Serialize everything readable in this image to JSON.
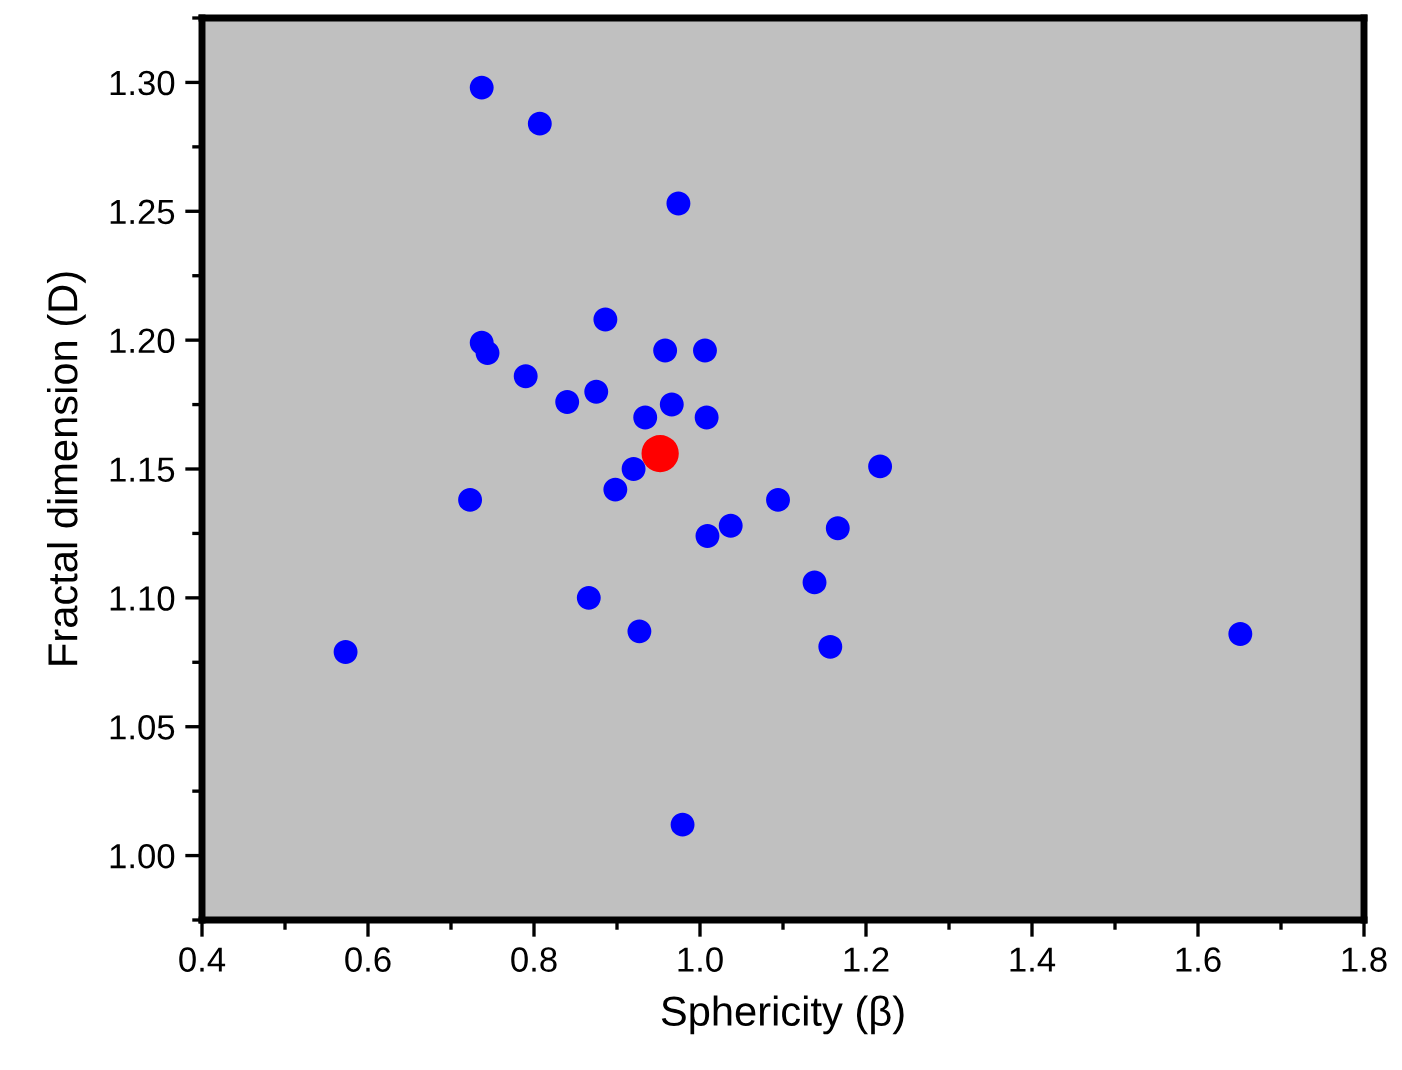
{
  "chart_data": {
    "type": "scatter",
    "xlabel": "Sphericity (β)",
    "ylabel": "Fractal dimension (D)",
    "xlim": [
      0.4,
      1.8
    ],
    "ylim": [
      0.975,
      1.325
    ],
    "xticks": [
      {
        "value": 0.4,
        "label": "0.4"
      },
      {
        "value": 0.6,
        "label": "0.6"
      },
      {
        "value": 0.8,
        "label": "0.8"
      },
      {
        "value": 1.0,
        "label": "1.0"
      },
      {
        "value": 1.2,
        "label": "1.2"
      },
      {
        "value": 1.4,
        "label": "1.4"
      },
      {
        "value": 1.6,
        "label": "1.6"
      },
      {
        "value": 1.8,
        "label": "1.8"
      }
    ],
    "yticks": [
      {
        "value": 1.0,
        "label": "1.00"
      },
      {
        "value": 1.05,
        "label": "1.05"
      },
      {
        "value": 1.1,
        "label": "1.10"
      },
      {
        "value": 1.15,
        "label": "1.15"
      },
      {
        "value": 1.2,
        "label": "1.20"
      },
      {
        "value": 1.25,
        "label": "1.25"
      },
      {
        "value": 1.3,
        "label": "1.30"
      }
    ],
    "grid": false,
    "marker": "circle",
    "series": [
      {
        "color": "#0000ff",
        "x": [
          0.737,
          0.807,
          0.974,
          0.886,
          0.737,
          0.744,
          0.958,
          1.006,
          0.79,
          0.84,
          0.875,
          0.966,
          0.934,
          1.008,
          0.92,
          0.898,
          0.723,
          1.094,
          1.009,
          1.037,
          1.138,
          0.866,
          0.927,
          0.573,
          0.979,
          1.217,
          1.166,
          1.157,
          1.651
        ],
        "values": [
          1.298,
          1.284,
          1.253,
          1.208,
          1.199,
          1.195,
          1.196,
          1.196,
          1.186,
          1.176,
          1.18,
          1.175,
          1.17,
          1.17,
          1.15,
          1.142,
          1.138,
          1.138,
          1.124,
          1.128,
          1.106,
          1.1,
          1.087,
          1.079,
          1.012,
          1.151,
          1.127,
          1.081,
          1.086
        ]
      },
      {
        "color": "#ff0000",
        "x": [
          0.952
        ],
        "values": [
          1.156
        ]
      }
    ]
  }
}
